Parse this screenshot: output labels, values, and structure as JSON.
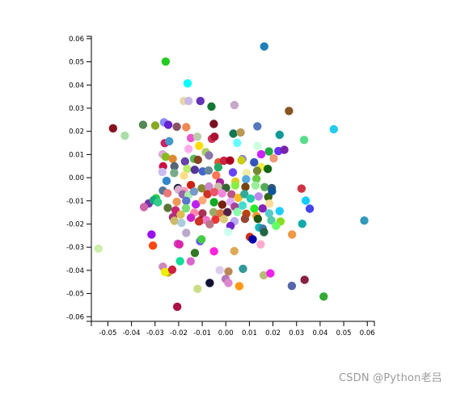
{
  "watermark": "CSDN @Python老吕",
  "chart_data": {
    "type": "scatter",
    "title": "",
    "xlabel": "",
    "ylabel": "",
    "xlim": [
      -0.057,
      0.063
    ],
    "ylim": [
      -0.062,
      0.061
    ],
    "grid": false,
    "x_ticks": [
      "-0.05",
      "-0.04",
      "-0.03",
      "-0.02",
      "-0.01",
      "0.00",
      "0.01",
      "0.02",
      "0.03",
      "0.04",
      "0.05",
      "0.06"
    ],
    "y_ticks": [
      "0.06",
      "0.05",
      "0.04",
      "0.03",
      "0.02",
      "0.01",
      "0.00",
      "-0.01",
      "-0.02",
      "-0.03",
      "-0.04",
      "-0.05",
      "-0.06"
    ],
    "x_tick_values": [
      -0.05,
      -0.04,
      -0.03,
      -0.02,
      -0.01,
      0.0,
      0.01,
      0.02,
      0.03,
      0.04,
      0.05,
      0.06
    ],
    "y_tick_values": [
      0.06,
      0.05,
      0.04,
      0.03,
      0.02,
      0.01,
      0.0,
      -0.01,
      -0.02,
      -0.03,
      -0.04,
      -0.05,
      -0.06
    ],
    "points": [
      {
        "x": 0.0163,
        "y": 0.0566,
        "color": "#1f7fb8"
      },
      {
        "x": -0.0255,
        "y": 0.0501,
        "color": "#22cc22"
      },
      {
        "x": -0.0162,
        "y": 0.0407,
        "color": "#00ffff"
      },
      {
        "x": -0.0178,
        "y": 0.0331,
        "color": "#e8d8a8"
      },
      {
        "x": -0.0158,
        "y": 0.0331,
        "color": "#c8b8e8"
      },
      {
        "x": -0.0108,
        "y": 0.0331,
        "color": "#6633bb"
      },
      {
        "x": -0.0061,
        "y": 0.0307,
        "color": "#117733"
      },
      {
        "x": 0.0037,
        "y": 0.0313,
        "color": "#c8a8c8"
      },
      {
        "x": 0.0268,
        "y": 0.0288,
        "color": "#885522"
      },
      {
        "x": -0.0478,
        "y": 0.0213,
        "color": "#881122"
      },
      {
        "x": -0.0428,
        "y": 0.0181,
        "color": "#aaddaa"
      },
      {
        "x": -0.0351,
        "y": 0.0228,
        "color": "#558855"
      },
      {
        "x": -0.0299,
        "y": 0.0225,
        "color": "#88aa22"
      },
      {
        "x": -0.0262,
        "y": 0.0239,
        "color": "#8888ff"
      },
      {
        "x": -0.0244,
        "y": 0.0228,
        "color": "#6622cc"
      },
      {
        "x": -0.0208,
        "y": 0.022,
        "color": "#885566"
      },
      {
        "x": -0.0168,
        "y": 0.0218,
        "color": "#ee8855"
      },
      {
        "x": -0.0051,
        "y": 0.0232,
        "color": "#771122"
      },
      {
        "x": 0.0032,
        "y": 0.019,
        "color": "#117755"
      },
      {
        "x": 0.0063,
        "y": 0.0195,
        "color": "#bb9955"
      },
      {
        "x": 0.0134,
        "y": 0.0222,
        "color": "#5577bb"
      },
      {
        "x": 0.0228,
        "y": 0.0185,
        "color": "#119999"
      },
      {
        "x": 0.0458,
        "y": 0.0209,
        "color": "#22ccee"
      },
      {
        "x": 0.0332,
        "y": 0.0163,
        "color": "#55dd88"
      },
      {
        "x": -0.0148,
        "y": 0.0171,
        "color": "#ee55cc"
      },
      {
        "x": -0.0121,
        "y": 0.0177,
        "color": "#bbccaa"
      },
      {
        "x": -0.0059,
        "y": 0.0168,
        "color": "#cc3355"
      },
      {
        "x": -0.0048,
        "y": 0.0177,
        "color": "#aa1133"
      },
      {
        "x": 0.0048,
        "y": 0.015,
        "color": "#66ffff"
      },
      {
        "x": 0.0134,
        "y": 0.0137,
        "color": "#ccffdd"
      },
      {
        "x": 0.0223,
        "y": 0.0115,
        "color": "#6633ff"
      },
      {
        "x": 0.0248,
        "y": 0.012,
        "color": "#7722aa"
      },
      {
        "x": -0.0259,
        "y": 0.0149,
        "color": "#cc2266"
      },
      {
        "x": -0.024,
        "y": 0.0157,
        "color": "#4499cc"
      },
      {
        "x": -0.0158,
        "y": 0.0124,
        "color": "#ffaaee"
      },
      {
        "x": -0.0113,
        "y": 0.0137,
        "color": "#ffdd00"
      },
      {
        "x": -0.0085,
        "y": 0.011,
        "color": "#aacc66"
      },
      {
        "x": -0.0071,
        "y": 0.0096,
        "color": "#8877aa"
      },
      {
        "x": 0.007,
        "y": 0.008,
        "color": "#7777ee"
      },
      {
        "x": 0.015,
        "y": 0.0101,
        "color": "#cc22ff"
      },
      {
        "x": 0.0183,
        "y": 0.0113,
        "color": "#22aa44"
      },
      {
        "x": 0.0203,
        "y": 0.0083,
        "color": "#ee9977"
      },
      {
        "x": -0.0268,
        "y": 0.0101,
        "color": "#ddaadd"
      },
      {
        "x": -0.0255,
        "y": 0.009,
        "color": "#88bb22"
      },
      {
        "x": -0.0225,
        "y": 0.0081,
        "color": "#dd8833"
      },
      {
        "x": -0.0173,
        "y": 0.007,
        "color": "#6644aa"
      },
      {
        "x": -0.0135,
        "y": 0.0081,
        "color": "#55bb55"
      },
      {
        "x": -0.0118,
        "y": 0.0077,
        "color": "#884422"
      },
      {
        "x": -0.0031,
        "y": 0.0066,
        "color": "#dd5533"
      },
      {
        "x": -0.0008,
        "y": 0.0073,
        "color": "#cc2244"
      },
      {
        "x": 0.0018,
        "y": 0.0074,
        "color": "#aa0022"
      },
      {
        "x": 0.0066,
        "y": 0.0075,
        "color": "#cccc11"
      },
      {
        "x": 0.012,
        "y": 0.0066,
        "color": "#3355bb"
      },
      {
        "x": 0.015,
        "y": 0.0046,
        "color": "#eeee44"
      },
      {
        "x": -0.0266,
        "y": 0.0049,
        "color": "#cc1144"
      },
      {
        "x": -0.0218,
        "y": 0.0049,
        "color": "#556677"
      },
      {
        "x": -0.0164,
        "y": 0.0038,
        "color": "#bbee66"
      },
      {
        "x": -0.0132,
        "y": 0.0034,
        "color": "#553399"
      },
      {
        "x": -0.0098,
        "y": 0.0027,
        "color": "#4466cc"
      },
      {
        "x": -0.0073,
        "y": 0.0031,
        "color": "#668899"
      },
      {
        "x": -0.0032,
        "y": 0.0045,
        "color": "#22aa66"
      },
      {
        "x": 0.003,
        "y": 0.0023,
        "color": "#6644ff"
      },
      {
        "x": 0.0088,
        "y": 0.002,
        "color": "#eeeeaa"
      },
      {
        "x": 0.0133,
        "y": 0.003,
        "color": "#778833"
      },
      {
        "x": 0.0178,
        "y": 0.0038,
        "color": "#116611"
      },
      {
        "x": -0.0269,
        "y": 0.0025,
        "color": "#ccbbee"
      },
      {
        "x": -0.0219,
        "y": 0.002,
        "color": "#77aa88"
      },
      {
        "x": -0.0177,
        "y": 0.0009,
        "color": "#ffdd88"
      },
      {
        "x": -0.0041,
        "y": 0.001,
        "color": "#ff7755"
      },
      {
        "x": -0.0025,
        "y": -0.002,
        "color": "#aa2299"
      },
      {
        "x": 0.0041,
        "y": -0.0017,
        "color": "#ddcc22"
      },
      {
        "x": 0.0086,
        "y": -0.0007,
        "color": "#55aadd"
      },
      {
        "x": 0.013,
        "y": -0.0005,
        "color": "#66cc44"
      },
      {
        "x": -0.0251,
        "y": -0.0014,
        "color": "#3388cc"
      },
      {
        "x": -0.0203,
        "y": -0.0045,
        "color": "#222244"
      },
      {
        "x": -0.0176,
        "y": -0.0058,
        "color": "#ff99bb"
      },
      {
        "x": -0.0148,
        "y": -0.0032,
        "color": "#cc2211"
      },
      {
        "x": -0.0102,
        "y": -0.0046,
        "color": "#888833"
      },
      {
        "x": -0.0071,
        "y": -0.0038,
        "color": "#cc88cc"
      },
      {
        "x": -0.0032,
        "y": -0.0039,
        "color": "#ccbbaa"
      },
      {
        "x": 0.0001,
        "y": -0.0044,
        "color": "#336633"
      },
      {
        "x": 0.004,
        "y": -0.0034,
        "color": "#88ee44"
      },
      {
        "x": 0.0083,
        "y": -0.004,
        "color": "#774411"
      },
      {
        "x": 0.0126,
        "y": -0.0034,
        "color": "#99ee99"
      },
      {
        "x": 0.0165,
        "y": -0.0041,
        "color": "#55aa55"
      },
      {
        "x": 0.0195,
        "y": -0.0045,
        "color": "#335577"
      },
      {
        "x": 0.0321,
        "y": -0.0047,
        "color": "#cc3344"
      },
      {
        "x": -0.0327,
        "y": -0.0111,
        "color": "#7733aa"
      },
      {
        "x": -0.0296,
        "y": -0.0089,
        "color": "#22cc44"
      },
      {
        "x": -0.0267,
        "y": -0.0056,
        "color": "#557799"
      },
      {
        "x": -0.0247,
        "y": -0.0067,
        "color": "#ee7777"
      },
      {
        "x": -0.02,
        "y": -0.0052,
        "color": "#ddaacc"
      },
      {
        "x": -0.0183,
        "y": -0.0072,
        "color": "#9966aa"
      },
      {
        "x": -0.0158,
        "y": -0.0075,
        "color": "#aaeeaa"
      },
      {
        "x": -0.0135,
        "y": -0.006,
        "color": "#7799cc"
      },
      {
        "x": -0.0078,
        "y": -0.0071,
        "color": "#cc3322"
      },
      {
        "x": -0.0049,
        "y": -0.0062,
        "color": "#ee5566"
      },
      {
        "x": -0.0016,
        "y": -0.0068,
        "color": "#ee88dd"
      },
      {
        "x": 0.0024,
        "y": -0.0072,
        "color": "#bb5588"
      },
      {
        "x": 0.0053,
        "y": -0.0087,
        "color": "#ffbb22"
      },
      {
        "x": 0.0079,
        "y": -0.0071,
        "color": "#33aa99"
      },
      {
        "x": 0.0105,
        "y": -0.009,
        "color": "#22ccaa"
      },
      {
        "x": 0.0139,
        "y": -0.0081,
        "color": "#bb88ee"
      },
      {
        "x": 0.018,
        "y": -0.0083,
        "color": "#336611"
      },
      {
        "x": 0.0196,
        "y": -0.0058,
        "color": "#115599"
      },
      {
        "x": 0.0339,
        "y": -0.0099,
        "color": "#11ccff"
      },
      {
        "x": -0.0306,
        "y": -0.0097,
        "color": "#11aa77"
      },
      {
        "x": -0.0288,
        "y": -0.0106,
        "color": "#33cc88"
      },
      {
        "x": -0.0208,
        "y": -0.0104,
        "color": "#ee9955"
      },
      {
        "x": -0.0168,
        "y": -0.01,
        "color": "#5577cc"
      },
      {
        "x": -0.0127,
        "y": -0.0115,
        "color": "#bb22ee"
      },
      {
        "x": -0.0099,
        "y": -0.0098,
        "color": "#ffaa77"
      },
      {
        "x": -0.005,
        "y": -0.0106,
        "color": "#11aa22"
      },
      {
        "x": -0.0015,
        "y": -0.0116,
        "color": "#772211"
      },
      {
        "x": 0.002,
        "y": -0.0104,
        "color": "#ddaaff"
      },
      {
        "x": 0.0038,
        "y": -0.0125,
        "color": "#aa4499"
      },
      {
        "x": 0.0071,
        "y": -0.012,
        "color": "#44ddcc"
      },
      {
        "x": 0.0121,
        "y": -0.0134,
        "color": "#22ee22"
      },
      {
        "x": 0.0156,
        "y": -0.0133,
        "color": "#8822bb"
      },
      {
        "x": 0.0185,
        "y": -0.0112,
        "color": "#ffdd99"
      },
      {
        "x": 0.0356,
        "y": -0.0134,
        "color": "#4444ee"
      },
      {
        "x": -0.0347,
        "y": -0.0127,
        "color": "#cc66aa"
      },
      {
        "x": -0.0246,
        "y": -0.013,
        "color": "#557733"
      },
      {
        "x": -0.0213,
        "y": -0.0141,
        "color": "#cc2277"
      },
      {
        "x": -0.0169,
        "y": -0.0132,
        "color": "#77dd77"
      },
      {
        "x": -0.0134,
        "y": -0.0151,
        "color": "#ff88aa"
      },
      {
        "x": -0.0099,
        "y": -0.0154,
        "color": "#aa3355"
      },
      {
        "x": -0.0052,
        "y": -0.0149,
        "color": "#99aa66"
      },
      {
        "x": -0.0023,
        "y": -0.0154,
        "color": "#dd7744"
      },
      {
        "x": 0.0007,
        "y": -0.0149,
        "color": "#552244"
      },
      {
        "x": 0.0049,
        "y": -0.0148,
        "color": "#88ffaa"
      },
      {
        "x": 0.0087,
        "y": -0.0156,
        "color": "#bb4411"
      },
      {
        "x": 0.013,
        "y": -0.0165,
        "color": "#ff9933"
      },
      {
        "x": 0.0184,
        "y": -0.0154,
        "color": "#55cccc"
      },
      {
        "x": 0.0228,
        "y": -0.0144,
        "color": "#22ccff"
      },
      {
        "x": -0.0224,
        "y": -0.0171,
        "color": "#aa3377"
      },
      {
        "x": -0.0191,
        "y": -0.0159,
        "color": "#ddbb55"
      },
      {
        "x": -0.0148,
        "y": -0.0173,
        "color": "#cc22cc"
      },
      {
        "x": -0.0109,
        "y": -0.0185,
        "color": "#991133"
      },
      {
        "x": -0.0084,
        "y": -0.0183,
        "color": "#ee77cc"
      },
      {
        "x": -0.0044,
        "y": -0.0181,
        "color": "#ee3333"
      },
      {
        "x": -0.0008,
        "y": -0.0179,
        "color": "#ddcc77"
      },
      {
        "x": 0.0037,
        "y": -0.0188,
        "color": "#bbaaee"
      },
      {
        "x": 0.0081,
        "y": -0.0178,
        "color": "#994433"
      },
      {
        "x": 0.0136,
        "y": -0.0178,
        "color": "#225511"
      },
      {
        "x": 0.0193,
        "y": -0.0184,
        "color": "#55ccaa"
      },
      {
        "x": 0.0232,
        "y": -0.0189,
        "color": "#88dd22"
      },
      {
        "x": -0.0218,
        "y": -0.0186,
        "color": "#ccbb66"
      },
      {
        "x": -0.0188,
        "y": -0.0195,
        "color": "#aaccdd"
      },
      {
        "x": -0.0114,
        "y": -0.0189,
        "color": "#cc3322"
      },
      {
        "x": -0.0068,
        "y": -0.0201,
        "color": "#bb7788"
      },
      {
        "x": 0.002,
        "y": -0.0208,
        "color": "#7722cc"
      },
      {
        "x": 0.0141,
        "y": -0.0215,
        "color": "#11bbbb"
      },
      {
        "x": 0.0157,
        "y": -0.022,
        "color": "#4477aa"
      },
      {
        "x": 0.0213,
        "y": -0.0208,
        "color": "#66ff66"
      },
      {
        "x": 0.0324,
        "y": -0.0199,
        "color": "#11aaaa"
      },
      {
        "x": 0.0587,
        "y": -0.0185,
        "color": "#3399bb"
      },
      {
        "x": 0.001,
        "y": -0.0234,
        "color": "#ccffee"
      },
      {
        "x": 0.0162,
        "y": -0.0235,
        "color": "#226644"
      },
      {
        "x": -0.0315,
        "y": -0.0245,
        "color": "#9911ee"
      },
      {
        "x": -0.0168,
        "y": -0.0238,
        "color": "#bbaacc"
      },
      {
        "x": -0.0109,
        "y": -0.0274,
        "color": "#6655ff"
      },
      {
        "x": -0.0103,
        "y": -0.0266,
        "color": "#44cc44"
      },
      {
        "x": 0.0102,
        "y": -0.0256,
        "color": "#cc3311"
      },
      {
        "x": 0.0114,
        "y": -0.0266,
        "color": "#0000aa"
      },
      {
        "x": 0.0148,
        "y": -0.0288,
        "color": "#ffaacc"
      },
      {
        "x": 0.0281,
        "y": -0.0245,
        "color": "#ee9944"
      },
      {
        "x": -0.054,
        "y": -0.0306,
        "color": "#cceeaa"
      },
      {
        "x": -0.0309,
        "y": -0.0293,
        "color": "#ff4411"
      },
      {
        "x": -0.0204,
        "y": -0.0285,
        "color": "#cc55cc"
      },
      {
        "x": -0.0197,
        "y": -0.0288,
        "color": "#dd22aa"
      },
      {
        "x": -0.0131,
        "y": -0.0325,
        "color": "#337722"
      },
      {
        "x": -0.005,
        "y": -0.0318,
        "color": "#ff22dd"
      },
      {
        "x": 0.0036,
        "y": -0.0317,
        "color": "#ddaa55"
      },
      {
        "x": -0.0267,
        "y": -0.0384,
        "color": "#cc88bb"
      },
      {
        "x": -0.0244,
        "y": -0.0409,
        "color": "#ccaa22"
      },
      {
        "x": -0.0258,
        "y": -0.0407,
        "color": "#eeee00"
      },
      {
        "x": -0.0227,
        "y": -0.0397,
        "color": "#cc2244"
      },
      {
        "x": -0.0194,
        "y": -0.036,
        "color": "#11dd99"
      },
      {
        "x": -0.0149,
        "y": -0.0361,
        "color": "#dd66cc"
      },
      {
        "x": -0.0026,
        "y": -0.0399,
        "color": "#ddccee"
      },
      {
        "x": 0.0011,
        "y": -0.0405,
        "color": "#bb8855"
      },
      {
        "x": 0.0073,
        "y": -0.0393,
        "color": "#339999"
      },
      {
        "x": 0.0161,
        "y": -0.0421,
        "color": "#bbbb77"
      },
      {
        "x": 0.0189,
        "y": -0.0413,
        "color": "#ee22ee"
      },
      {
        "x": -0.012,
        "y": -0.048,
        "color": "#ccdd88"
      },
      {
        "x": -0.0068,
        "y": -0.0454,
        "color": "#111133"
      },
      {
        "x": -0.0001,
        "y": -0.0437,
        "color": "#bb77bb"
      },
      {
        "x": 0.0011,
        "y": -0.0454,
        "color": "#dd88cc"
      },
      {
        "x": 0.0057,
        "y": -0.0468,
        "color": "#ff9911"
      },
      {
        "x": 0.028,
        "y": -0.0467,
        "color": "#5566aa"
      },
      {
        "x": 0.0334,
        "y": -0.0441,
        "color": "#882244"
      },
      {
        "x": 0.0415,
        "y": -0.0513,
        "color": "#33aa33"
      },
      {
        "x": -0.0206,
        "y": -0.0557,
        "color": "#aa1144"
      }
    ]
  }
}
